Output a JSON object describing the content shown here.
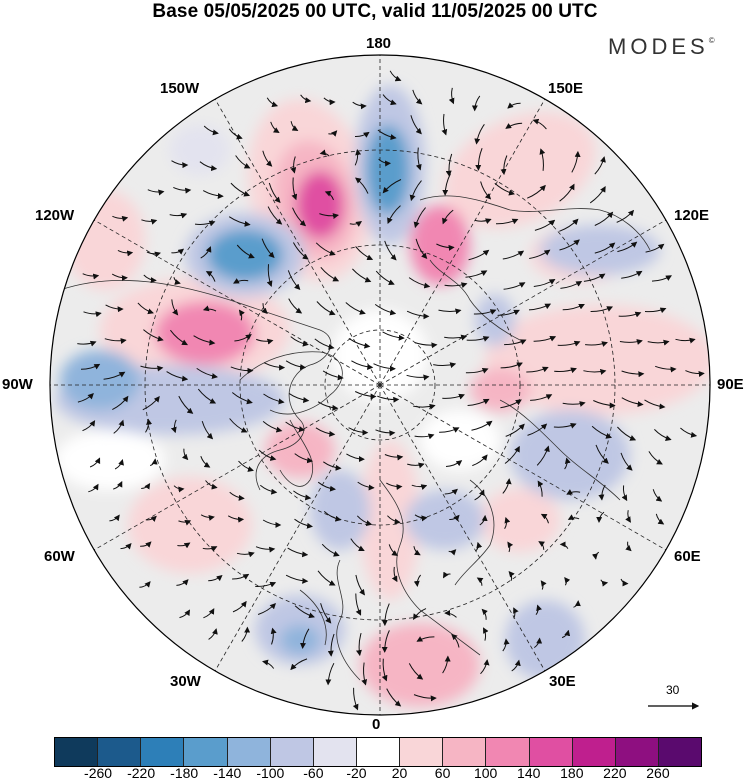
{
  "title": "Base 05/05/2025 00 UTC, valid 11/05/2025 00 UTC",
  "brand": {
    "text": "MODES",
    "mark": "©"
  },
  "map": {
    "projection": "north polar stereographic",
    "field": "geopotential height anomaly with wind vectors",
    "longitude_labels": {
      "top": "180",
      "bottom": "0",
      "left": "90W",
      "right": "90E",
      "upper_left_outer": "150W",
      "upper_left_inner": "120W",
      "upper_right_outer": "150E",
      "upper_right_inner": "120E",
      "lower_left_inner": "60W",
      "lower_left_outer": "30W",
      "lower_right_inner": "60E",
      "lower_right_outer": "30E"
    },
    "reference_vector": {
      "value": "30",
      "icon": "arrow-right-icon"
    }
  },
  "colorbar": {
    "labels": [
      "-260",
      "-220",
      "-180",
      "-140",
      "-100",
      "-60",
      "-20",
      "20",
      "60",
      "100",
      "140",
      "180",
      "220",
      "260"
    ],
    "colors": [
      "#0f3a5c",
      "#1c5a8c",
      "#2d7fb8",
      "#5a9dcc",
      "#8fb4dc",
      "#bfc7e4",
      "#e3e3ef",
      "#ffffff",
      "#f9d6d8",
      "#f6b5c4",
      "#f187b2",
      "#e04fa2",
      "#bf1f8e",
      "#8e0f80",
      "#5a0a6e"
    ]
  }
}
